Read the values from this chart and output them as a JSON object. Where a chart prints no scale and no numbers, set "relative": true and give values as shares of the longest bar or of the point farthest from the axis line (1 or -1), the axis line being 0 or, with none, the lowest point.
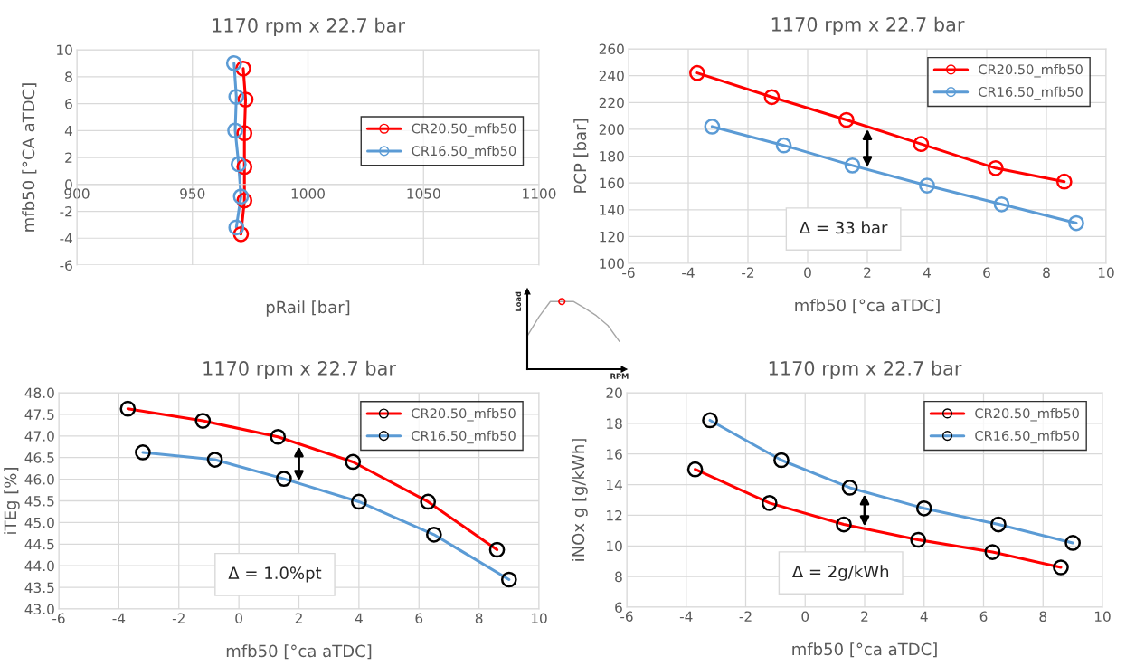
{
  "chart_data": [
    {
      "type": "line",
      "title": "1170 rpm x 22.7 bar",
      "xlabel": "pRail [bar]",
      "ylabel": "mfb50 [°CA aTDC]",
      "xlim": [
        900,
        1100
      ],
      "xticks": [
        900,
        950,
        1000,
        1050,
        1100
      ],
      "ylim": [
        -6,
        10
      ],
      "yticks": [
        -6,
        -4,
        -2,
        0,
        2,
        4,
        6,
        8,
        10
      ],
      "grid": true,
      "legend": "right",
      "marker": "circle",
      "line_style": "solid",
      "series": [
        {
          "name": "CR20.50_mfb50",
          "color": "#ff0000",
          "x": [
            972,
            973,
            972.5,
            972.5,
            972.5,
            971
          ],
          "values": [
            8.6,
            6.3,
            3.8,
            1.3,
            -1.2,
            -3.7
          ]
        },
        {
          "name": "CR16.50_mfb50",
          "color": "#5b9bd5",
          "x": [
            968,
            969,
            968.5,
            970,
            971,
            969
          ],
          "values": [
            9.0,
            6.5,
            4.0,
            1.5,
            -0.9,
            -3.2
          ]
        }
      ]
    },
    {
      "type": "line",
      "title": "1170 rpm x 22.7 bar",
      "xlabel": "mfb50 [°ca aTDC]",
      "ylabel": "PCP [bar]",
      "xlim": [
        -6,
        10
      ],
      "xticks": [
        -6,
        -4,
        -2,
        0,
        2,
        4,
        6,
        8,
        10
      ],
      "ylim": [
        100,
        260
      ],
      "yticks": [
        100,
        120,
        140,
        160,
        180,
        200,
        220,
        240,
        260
      ],
      "grid": true,
      "legend": "top right",
      "marker": "circle",
      "line_style": "solid",
      "annotations": [
        "Δ = 33 bar"
      ],
      "series": [
        {
          "name": "CR20.50_mfb50",
          "color": "#ff0000",
          "x": [
            -3.7,
            -1.2,
            1.3,
            3.8,
            6.3,
            8.6
          ],
          "values": [
            242,
            224,
            207,
            189,
            171,
            161
          ]
        },
        {
          "name": "CR16.50_mfb50",
          "color": "#5b9bd5",
          "x": [
            -3.2,
            -0.8,
            1.5,
            4.0,
            6.5,
            9.0
          ],
          "values": [
            202,
            188,
            173,
            158,
            144,
            130
          ]
        }
      ]
    },
    {
      "type": "line",
      "title": "1170 rpm x 22.7 bar",
      "xlabel": "mfb50 [°ca aTDC]",
      "ylabel": "iTEg [%]",
      "xlim": [
        -6,
        10
      ],
      "xticks": [
        -6,
        -4,
        -2,
        0,
        2,
        4,
        6,
        8,
        10
      ],
      "ylim": [
        43,
        48
      ],
      "yticks": [
        {
          "value": 43,
          "label": "43.0"
        },
        43.5,
        {
          "value": 44,
          "label": "44.0"
        },
        44.5,
        {
          "value": 45,
          "label": "45.0"
        },
        45.5,
        {
          "value": 46,
          "label": "46.0"
        },
        46.5,
        {
          "value": 47,
          "label": "47.0"
        },
        47.5,
        {
          "value": 48,
          "label": "48.0"
        }
      ],
      "grid": true,
      "legend": "top right",
      "marker": "circle",
      "line_style": "solid",
      "annotations": [
        "Δ = 1.0%pt"
      ],
      "series": [
        {
          "name": "CR20.50_mfb50",
          "color": "#ff0000",
          "colors": [
            "#000000",
            "#000000",
            "#000000",
            "#000000",
            "#000000",
            "#000000"
          ],
          "x": [
            -3.7,
            -1.2,
            1.3,
            3.8,
            6.3,
            8.6
          ],
          "values": [
            47.63,
            47.35,
            46.98,
            46.4,
            45.48,
            44.37
          ]
        },
        {
          "name": "CR16.50_mfb50",
          "color": "#5b9bd5",
          "colors": [
            "#000000",
            "#000000",
            "#000000",
            "#000000",
            "#000000",
            "#000000"
          ],
          "x": [
            -3.2,
            -0.8,
            1.5,
            4.0,
            6.5,
            9.0
          ],
          "values": [
            46.62,
            46.45,
            46.01,
            45.48,
            44.72,
            43.68
          ]
        }
      ]
    },
    {
      "type": "line",
      "title": "1170 rpm x 22.7 bar",
      "xlabel": "mfb50 [°ca aTDC]",
      "ylabel": "iNOx g [g/kWh]",
      "xlim": [
        -6,
        10
      ],
      "xticks": [
        -6,
        -4,
        -2,
        0,
        2,
        4,
        6,
        8,
        10
      ],
      "ylim": [
        6,
        20
      ],
      "yticks": [
        6,
        8,
        10,
        12,
        14,
        16,
        18,
        20
      ],
      "grid": true,
      "legend": "top right",
      "marker": "circle",
      "line_style": "solid",
      "annotations": [
        "Δ = 2g/kWh"
      ],
      "series": [
        {
          "name": "CR20.50_mfb50",
          "color": "#ff0000",
          "colors": [
            "#000000",
            "#000000",
            "#000000",
            "#000000",
            "#000000",
            "#000000"
          ],
          "x": [
            -3.7,
            -1.2,
            1.3,
            3.8,
            6.3,
            8.6
          ],
          "values": [
            15.0,
            12.8,
            11.4,
            10.4,
            9.6,
            8.6
          ]
        },
        {
          "name": "CR16.50_mfb50",
          "color": "#5b9bd5",
          "colors": [
            "#000000",
            "#000000",
            "#000000",
            "#000000",
            "#000000",
            "#000000"
          ],
          "x": [
            -3.2,
            -0.8,
            1.5,
            4.0,
            6.5,
            9.0
          ],
          "values": [
            18.2,
            15.6,
            13.8,
            12.45,
            11.4,
            10.2
          ]
        }
      ]
    },
    {
      "type": "line",
      "relative": true,
      "xlabel": "RPM",
      "ylabel": "Load",
      "categories": [
        null,
        null,
        null,
        null,
        null,
        null,
        null,
        null,
        null
      ],
      "series": [
        {
          "color": "#a6a6a6",
          "colors": [
            null,
            null,
            null,
            "#ff0000",
            null,
            null,
            null,
            null,
            null
          ],
          "values": [
            0.49,
            0.77,
            1,
            1,
            1,
            0.9,
            0.79,
            0.645,
            0.41
          ]
        }
      ]
    }
  ]
}
